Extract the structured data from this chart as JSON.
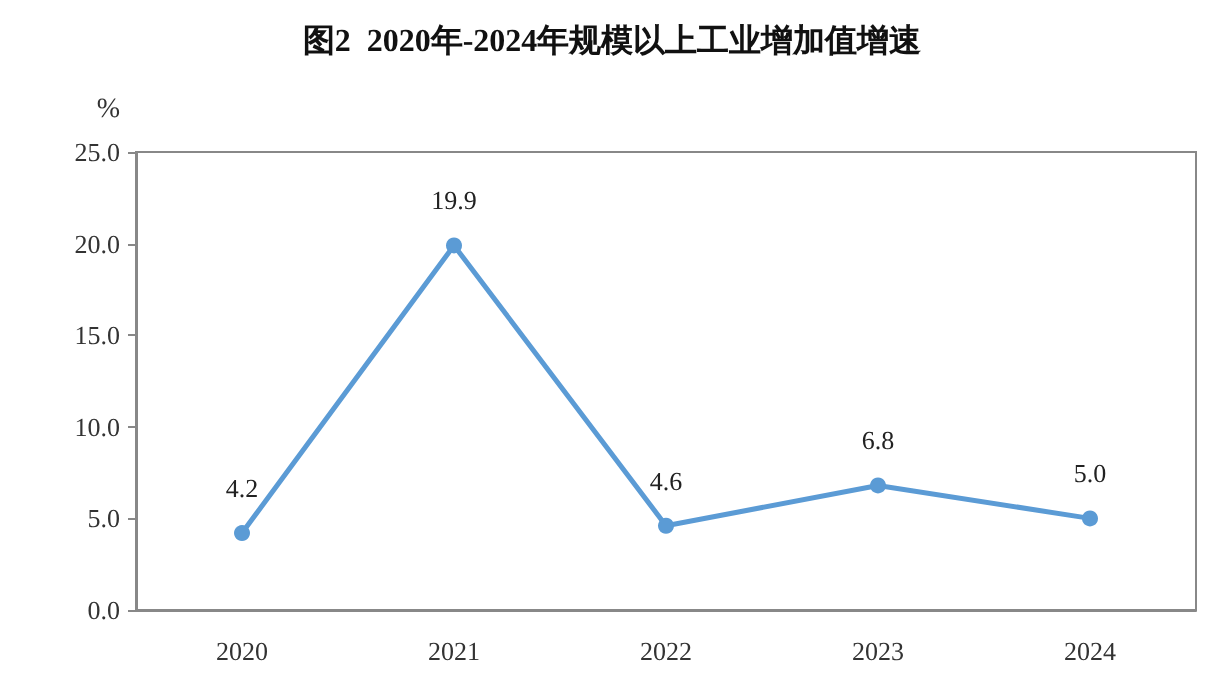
{
  "chart_data": {
    "type": "line",
    "title": "图2  2020年-2024年规模以上工业增加值增速",
    "ylabel": "%",
    "categories": [
      "2020",
      "2021",
      "2022",
      "2023",
      "2024"
    ],
    "series": [
      {
        "color": "#5b9bd5",
        "values": [
          4.2,
          19.9,
          4.6,
          6.8,
          5.0
        ],
        "value_labels": [
          "4.2",
          "19.9",
          "4.6",
          "6.8",
          "5.0"
        ]
      }
    ],
    "ylim": [
      0,
      25
    ],
    "yticks": [
      {
        "value": 0,
        "label": "0.0"
      },
      {
        "value": 5,
        "label": "5.0"
      },
      {
        "value": 10,
        "label": "10.0"
      },
      {
        "value": 15,
        "label": "15.0"
      },
      {
        "value": 20,
        "label": "20.0"
      },
      {
        "value": 25,
        "label": "25.0"
      }
    ],
    "grid": false,
    "marker": "circle",
    "line_style": "solid"
  }
}
